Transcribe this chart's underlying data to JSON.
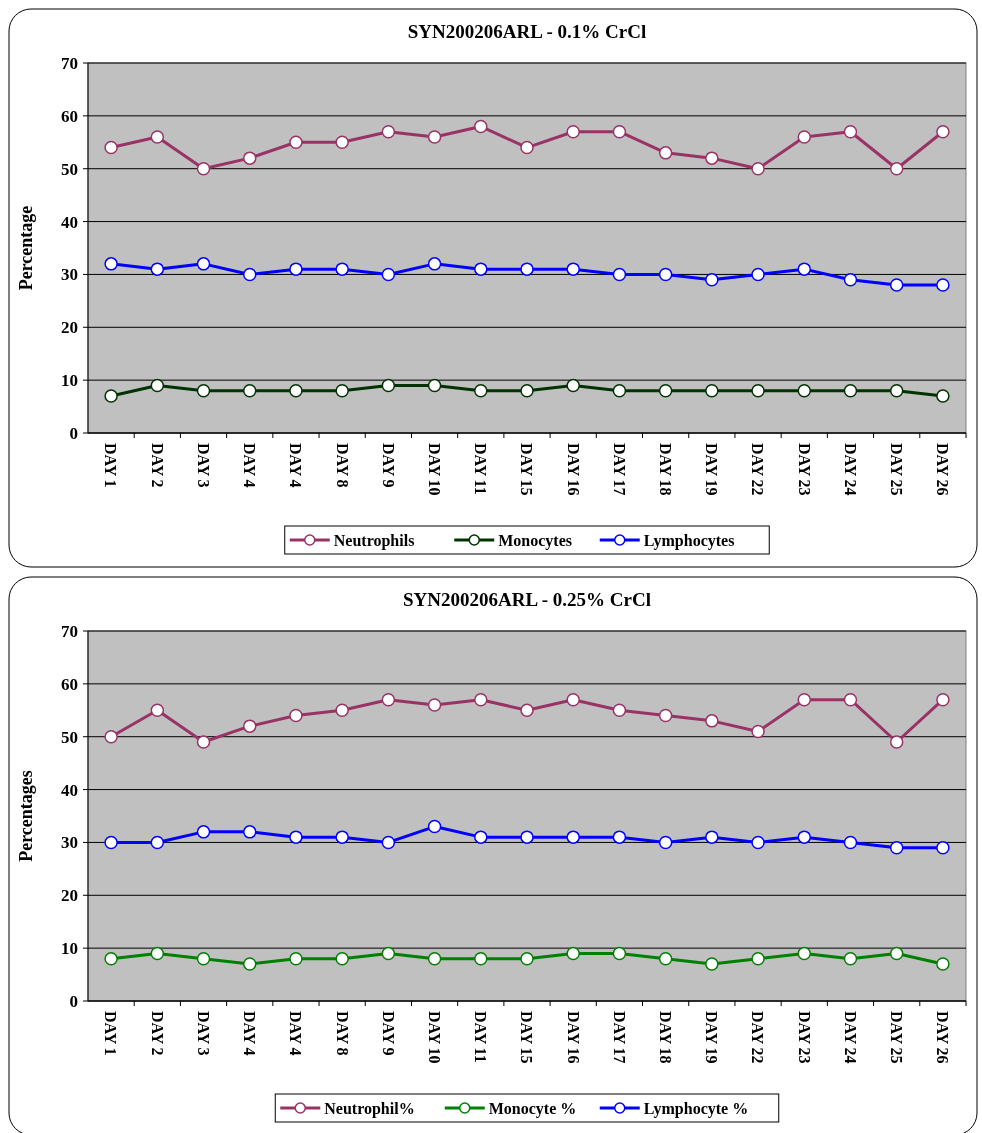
{
  "chart_data": [
    {
      "type": "line",
      "title": "SYN200206ARL - 0.1% CrCl",
      "ylabel": "Percentage",
      "categories": [
        "DAY 1",
        "DAY 2",
        "DAY 3",
        "DAY 4",
        "DAY 4",
        "DAY 8",
        "DAY 9",
        "DAY 10",
        "DAY 11",
        "DAY 15",
        "DAY 16",
        "DAY 17",
        "DAY 18",
        "DAY 19",
        "DAY 22",
        "DAY 23",
        "DAY 24",
        "DAY 25",
        "DAY 26"
      ],
      "ylim": [
        0,
        70
      ],
      "yticks": [
        0,
        10,
        20,
        30,
        40,
        50,
        60,
        70
      ],
      "grid": "y",
      "legend": "bottom",
      "marker": "circle",
      "series": [
        {
          "name": "Neutrophils",
          "color": "#993366",
          "values": [
            54,
            56,
            50,
            52,
            55,
            55,
            57,
            56,
            58,
            54,
            57,
            57,
            53,
            52,
            50,
            56,
            57,
            50,
            57
          ]
        },
        {
          "name": "Monocytes",
          "color": "#003300",
          "values": [
            7,
            9,
            8,
            8,
            8,
            8,
            9,
            9,
            8,
            8,
            9,
            8,
            8,
            8,
            8,
            8,
            8,
            8,
            7
          ]
        },
        {
          "name": "Lymphocytes",
          "color": "#0000ff",
          "values": [
            32,
            31,
            32,
            30,
            31,
            31,
            30,
            32,
            31,
            31,
            31,
            30,
            30,
            29,
            30,
            31,
            29,
            28,
            28
          ]
        }
      ]
    },
    {
      "type": "line",
      "title": "SYN200206ARL - 0.25% CrCl",
      "ylabel": "Percentages",
      "categories": [
        "DAY 1",
        "DAY 2",
        "DAY 3",
        "DAY 4",
        "DAY 4",
        "DAY 8",
        "DAY 9",
        "DAY 10",
        "DAY 11",
        "DAY 15",
        "DAY 16",
        "DAY 17",
        "DAY 18",
        "DAY 19",
        "DAY 22",
        "DAY 23",
        "DAY 24",
        "DAY 25",
        "DAY 26"
      ],
      "ylim": [
        0,
        70
      ],
      "yticks": [
        0,
        10,
        20,
        30,
        40,
        50,
        60,
        70
      ],
      "grid": "y",
      "legend": "bottom",
      "marker": "circle",
      "series": [
        {
          "name": "Neutrophil%",
          "color": "#993366",
          "values": [
            50,
            55,
            49,
            52,
            54,
            55,
            57,
            56,
            57,
            55,
            57,
            55,
            54,
            53,
            51,
            57,
            57,
            49,
            57
          ]
        },
        {
          "name": "Monocyte %",
          "color": "#008000",
          "values": [
            8,
            9,
            8,
            7,
            8,
            8,
            9,
            8,
            8,
            8,
            9,
            9,
            8,
            7,
            8,
            9,
            8,
            9,
            7
          ]
        },
        {
          "name": "Lymphocyte %",
          "color": "#0000ff",
          "values": [
            30,
            30,
            32,
            32,
            31,
            31,
            30,
            33,
            31,
            31,
            31,
            31,
            30,
            31,
            30,
            31,
            30,
            29,
            29
          ]
        }
      ]
    }
  ]
}
